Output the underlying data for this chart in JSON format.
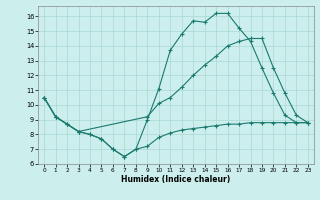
{
  "xlabel": "Humidex (Indice chaleur)",
  "background_color": "#cceeed",
  "grid_color": "#aad8d5",
  "line_color": "#1a7a6e",
  "xlim": [
    -0.5,
    23.5
  ],
  "ylim": [
    6,
    16.7
  ],
  "yticks": [
    6,
    7,
    8,
    9,
    10,
    11,
    12,
    13,
    14,
    15,
    16
  ],
  "xticks": [
    0,
    1,
    2,
    3,
    4,
    5,
    6,
    7,
    8,
    9,
    10,
    11,
    12,
    13,
    14,
    15,
    16,
    17,
    18,
    19,
    20,
    21,
    22,
    23
  ],
  "series1_x": [
    0,
    1,
    2,
    3,
    4,
    5,
    6,
    7,
    8,
    9,
    10,
    11,
    12,
    13,
    14,
    15,
    16,
    17,
    18,
    19,
    20,
    21,
    22,
    23
  ],
  "series1_y": [
    10.5,
    9.2,
    8.7,
    8.2,
    8.0,
    7.7,
    7.0,
    6.5,
    7.0,
    7.2,
    7.8,
    8.1,
    8.3,
    8.4,
    8.5,
    8.6,
    8.7,
    8.7,
    8.8,
    8.8,
    8.8,
    8.8,
    8.8,
    8.8
  ],
  "series2_x": [
    0,
    1,
    2,
    3,
    4,
    5,
    6,
    7,
    8,
    9,
    10,
    11,
    12,
    13,
    14,
    15,
    16,
    17,
    18,
    19,
    20,
    21,
    22,
    23
  ],
  "series2_y": [
    10.5,
    9.2,
    8.7,
    8.2,
    8.0,
    7.7,
    7.0,
    6.5,
    7.0,
    9.0,
    11.1,
    13.7,
    14.8,
    15.7,
    15.6,
    16.2,
    16.2,
    15.2,
    14.3,
    12.5,
    10.8,
    9.3,
    8.8,
    8.8
  ],
  "series3_x": [
    0,
    1,
    2,
    3,
    9,
    10,
    11,
    12,
    13,
    14,
    15,
    16,
    17,
    18,
    19,
    20,
    21,
    22,
    23
  ],
  "series3_y": [
    10.5,
    9.2,
    8.7,
    8.2,
    9.2,
    10.1,
    10.5,
    11.2,
    12.0,
    12.7,
    13.3,
    14.0,
    14.3,
    14.5,
    14.5,
    12.5,
    10.8,
    9.3,
    8.8
  ]
}
